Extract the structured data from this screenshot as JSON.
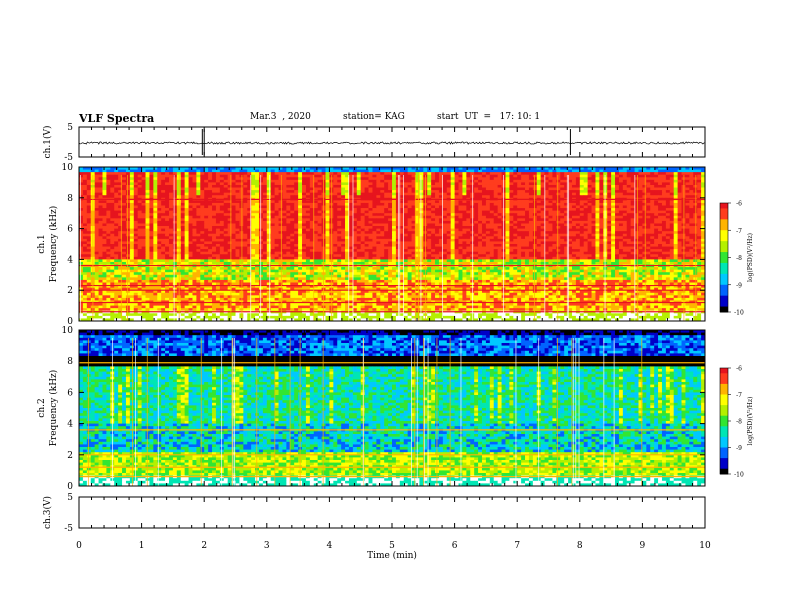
{
  "header": {
    "title": "VLF Spectra",
    "date": "Mar.3  , 2020",
    "station": "station= KAG",
    "start": "start  UT  =   17: 10: 1"
  },
  "chart_data": [
    {
      "type": "line",
      "name": "ch1-waveform",
      "ylabel": "ch.1(V)",
      "ylim": [
        -5,
        5
      ],
      "yticks": [
        "5",
        "-5"
      ],
      "xlim": [
        0,
        10
      ]
    },
    {
      "type": "heatmap",
      "name": "ch1-spectrogram",
      "ylabel": "ch.1\nFrequency (kHz)",
      "ylabel_line1": "ch.1",
      "ylabel_line2": "Frequency (kHz)",
      "ylim": [
        0,
        10
      ],
      "yticks": [
        "0",
        "2",
        "4",
        "6",
        "8",
        "10"
      ],
      "xlim": [
        0,
        10
      ],
      "colorbar": {
        "label": "log(PSD)(V²/Hz)",
        "range": [
          -10,
          -6
        ],
        "ticks": [
          "-6",
          "-7",
          "-8",
          "-9",
          "-10"
        ]
      },
      "bands_kHz": [
        0.6,
        1.2,
        2.0,
        2.3,
        3.6,
        7.9
      ],
      "dominant_level": "red (-7) from 4 to 9.5 kHz"
    },
    {
      "type": "heatmap",
      "name": "ch2-spectrogram",
      "ylabel": "ch.2\nFrequency (kHz)",
      "ylabel_line1": "ch.2",
      "ylabel_line2": "Frequency (kHz)",
      "ylim": [
        0,
        10
      ],
      "yticks": [
        "0",
        "2",
        "4",
        "6",
        "8",
        "10"
      ],
      "xlim": [
        0,
        10
      ],
      "colorbar": {
        "label": "log(PSD)(V²/Hz)",
        "range": [
          -10,
          -6
        ],
        "ticks": [
          "-6",
          "-7",
          "-8",
          "-9",
          "-10"
        ]
      },
      "bands_kHz": [
        0.6,
        1.2,
        2.0,
        3.6,
        7.9
      ],
      "dominant_level": "cyan/green (-8.5) from 2 to 9.5 kHz"
    },
    {
      "type": "line",
      "name": "ch3-waveform",
      "ylabel": "ch.3(V)",
      "ylim": [
        -5,
        5
      ],
      "yticks": [
        "5",
        "-5"
      ],
      "xlim": [
        0,
        10
      ]
    }
  ],
  "xaxis": {
    "label": "Time  (min)",
    "ticks": [
      "0",
      "1",
      "2",
      "3",
      "4",
      "5",
      "6",
      "7",
      "8",
      "9",
      "10"
    ],
    "values": [
      0,
      1,
      2,
      3,
      4,
      5,
      6,
      7,
      8,
      9,
      10
    ]
  },
  "colormap": [
    "#000000",
    "#0000c8",
    "#0064ff",
    "#00c8ff",
    "#00e6b4",
    "#32e632",
    "#b4f000",
    "#ffff00",
    "#ffb400",
    "#ff3c1e",
    "#e6141e",
    "#ffffff"
  ]
}
